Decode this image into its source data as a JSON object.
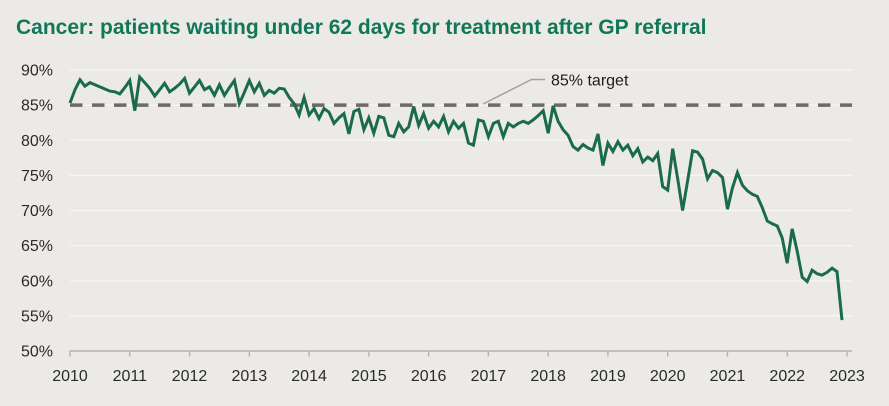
{
  "header": {
    "title": "Cancer: patients waiting under 62 days for treatment after GP referral"
  },
  "colors": {
    "background": "#ECEAE7",
    "title_green": "#117758",
    "series_green": "#1A6B4E",
    "target_dash_gray": "#6C6B69",
    "callout_gray": "#A3A2A0",
    "gridline": "#F7F6F4",
    "axis_gray": "#B3B2AF",
    "tick_text": "#2A2A28"
  },
  "chart_data": {
    "type": "line",
    "frequency": "monthly",
    "x_start": 2010.0,
    "xlim": [
      2010,
      2023.1
    ],
    "ylim": [
      50,
      90
    ],
    "grid": true,
    "legend": "none",
    "target": {
      "value": 85,
      "label": "85% target"
    },
    "y_ticks": [
      {
        "value": 90,
        "label": "90%"
      },
      {
        "value": 85,
        "label": "85%"
      },
      {
        "value": 80,
        "label": "80%"
      },
      {
        "value": 75,
        "label": "75%"
      },
      {
        "value": 70,
        "label": "70%"
      },
      {
        "value": 65,
        "label": "65%"
      },
      {
        "value": 60,
        "label": "60%"
      },
      {
        "value": 55,
        "label": "55%"
      },
      {
        "value": 50,
        "label": "50%"
      }
    ],
    "x_ticks": [
      {
        "value": 2010,
        "label": "2010"
      },
      {
        "value": 2011,
        "label": "2011"
      },
      {
        "value": 2012,
        "label": "2012"
      },
      {
        "value": 2013,
        "label": "2013"
      },
      {
        "value": 2014,
        "label": "2014"
      },
      {
        "value": 2015,
        "label": "2015"
      },
      {
        "value": 2016,
        "label": "2016"
      },
      {
        "value": 2017,
        "label": "2017"
      },
      {
        "value": 2018,
        "label": "2018"
      },
      {
        "value": 2019,
        "label": "2019"
      },
      {
        "value": 2020,
        "label": "2020"
      },
      {
        "value": 2021,
        "label": "2021"
      },
      {
        "value": 2022,
        "label": "2022"
      },
      {
        "value": 2023,
        "label": "2023"
      }
    ],
    "series": [
      {
        "color": "#1A6B4E",
        "values": [
          85.3,
          87.2,
          88.6,
          87.7,
          88.2,
          87.9,
          87.6,
          87.3,
          87.0,
          86.9,
          86.6,
          87.5,
          88.5,
          84.2,
          89.0,
          88.2,
          87.4,
          86.3,
          87.2,
          88.1,
          86.9,
          87.4,
          88.0,
          88.8,
          86.7,
          87.6,
          88.5,
          87.2,
          87.6,
          86.4,
          87.9,
          86.4,
          87.5,
          88.5,
          85.2,
          86.8,
          88.5,
          86.9,
          88.1,
          86.4,
          87.1,
          86.7,
          87.4,
          87.3,
          86.1,
          85.2,
          83.6,
          86.1,
          83.6,
          84.5,
          83.1,
          84.5,
          84.0,
          82.4,
          83.2,
          83.8,
          80.9,
          84.1,
          84.4,
          81.5,
          83.2,
          81.0,
          83.4,
          83.2,
          80.7,
          80.5,
          82.4,
          81.2,
          81.9,
          84.8,
          82.1,
          83.8,
          81.7,
          82.7,
          81.9,
          83.4,
          81.2,
          82.7,
          81.7,
          82.4,
          79.6,
          79.3,
          82.9,
          82.7,
          80.5,
          82.4,
          82.7,
          80.5,
          82.4,
          81.9,
          82.4,
          82.7,
          82.4,
          82.9,
          83.5,
          84.2,
          81.0,
          84.9,
          82.7,
          81.5,
          80.7,
          79.1,
          78.6,
          79.4,
          78.9,
          78.6,
          80.9,
          76.4,
          79.6,
          78.4,
          79.8,
          78.6,
          79.3,
          77.8,
          78.8,
          76.9,
          77.6,
          77.1,
          78.1,
          73.4,
          72.9,
          78.8,
          74.5,
          70.0,
          74.2,
          78.5,
          78.3,
          77.3,
          74.5,
          75.7,
          75.4,
          74.7,
          70.2,
          73.2,
          75.4,
          73.6,
          72.8,
          72.3,
          72.0,
          70.4,
          68.5,
          68.1,
          67.8,
          66.1,
          62.5,
          67.4,
          64.2,
          60.5,
          59.9,
          61.5,
          61.0,
          60.8,
          61.2,
          61.8,
          61.3,
          54.4
        ]
      }
    ]
  }
}
